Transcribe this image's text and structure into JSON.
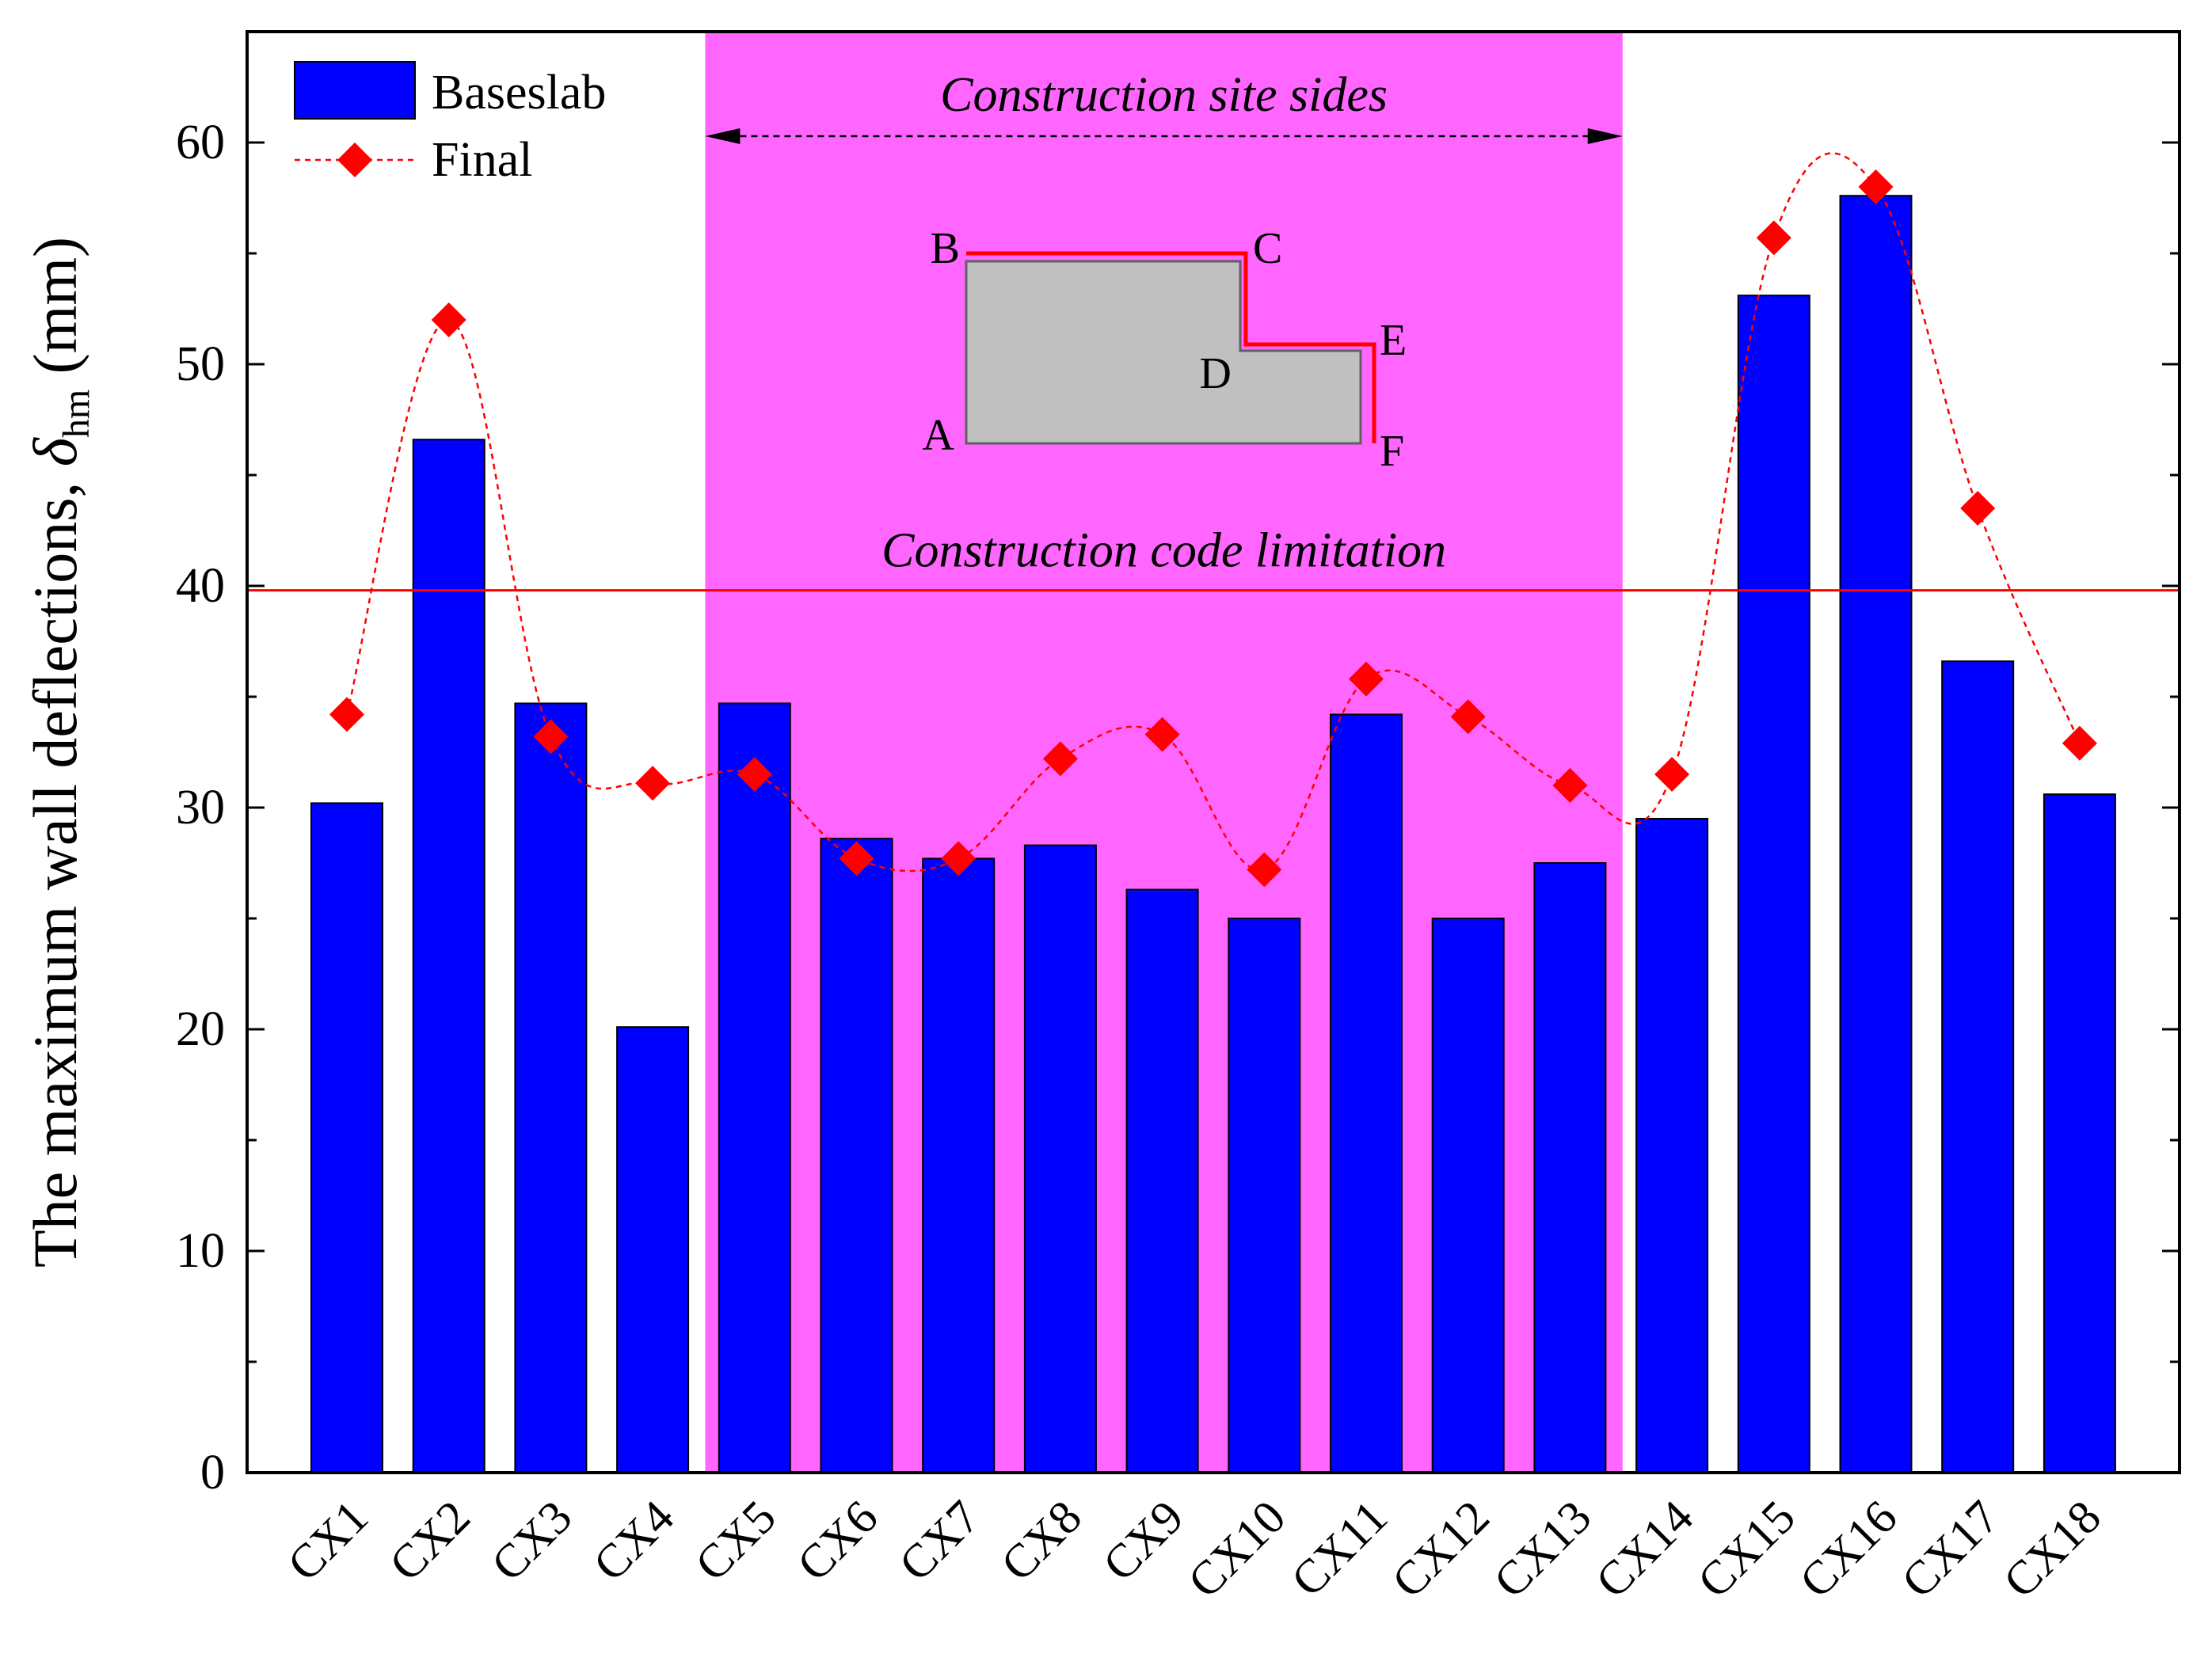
{
  "chart_data": {
    "type": "bar",
    "ylabel": {
      "main": "The maximum wall deflections, ",
      "symbol": "δ",
      "subscript": "hm",
      "unit": " (mm)"
    },
    "xlabel": "",
    "ylim": [
      0,
      65
    ],
    "yticks": [
      0,
      10,
      20,
      30,
      40,
      50,
      60
    ],
    "categories": [
      "CX1",
      "CX2",
      "CX3",
      "CX4",
      "CX5",
      "CX6",
      "CX7",
      "CX8",
      "CX9",
      "CX10",
      "CX11",
      "CX12",
      "CX13",
      "CX14",
      "CX15",
      "CX16",
      "CX17",
      "CX18"
    ],
    "series": [
      {
        "name": "Baseslab",
        "kind": "bar",
        "color": "#0000ff",
        "values": [
          30.2,
          46.6,
          34.7,
          20.1,
          34.7,
          28.6,
          27.7,
          28.3,
          26.3,
          25.0,
          34.2,
          25.0,
          27.5,
          29.5,
          53.1,
          57.6,
          36.6,
          30.6
        ]
      },
      {
        "name": "Final",
        "kind": "line",
        "color": "#ff0000",
        "values": [
          34.2,
          52.0,
          33.2,
          31.1,
          31.5,
          27.7,
          27.7,
          32.2,
          33.3,
          27.2,
          35.8,
          34.1,
          31.0,
          31.5,
          55.7,
          58.0,
          43.5,
          32.9
        ]
      }
    ],
    "limit_line": {
      "value": 39.8,
      "label": "Construction code limitation",
      "color": "#ff0000"
    },
    "highlight_region": {
      "from_category": "CX5",
      "to_category": "CX13",
      "label": "Construction site sides",
      "color": "#ff66ff"
    },
    "inset_points": [
      "A",
      "B",
      "C",
      "D",
      "E",
      "F"
    ],
    "legend_position": "top-left",
    "grid": false
  }
}
